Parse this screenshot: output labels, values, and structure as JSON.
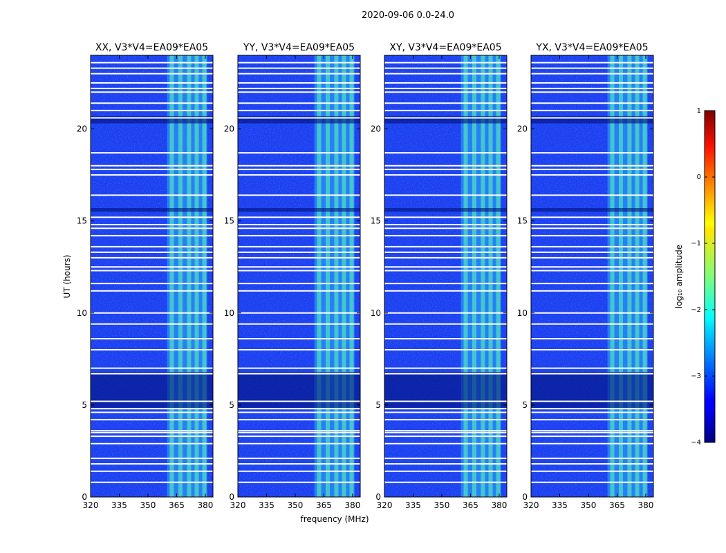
{
  "chart_data": {
    "type": "heatmap",
    "suptitle": "2020-09-06 0.0-24.0",
    "xlabel": "frequency (MHz)",
    "ylabel": "UT (hours)",
    "xlim": [
      320,
      384
    ],
    "ylim": [
      0,
      24
    ],
    "xticks": [
      320,
      335,
      350,
      365,
      380
    ],
    "yticks": [
      0,
      5,
      10,
      15,
      20
    ],
    "panels": [
      {
        "title": "XX, V3*V4=EA09*EA05",
        "pol": "XX"
      },
      {
        "title": "YY, V3*V4=EA09*EA05",
        "pol": "YY"
      },
      {
        "title": "XY, V3*V4=EA09*EA05",
        "pol": "XY"
      },
      {
        "title": "YX, V3*V4=EA09*EA05",
        "pol": "YX"
      }
    ],
    "rfi_band_mhz": [
      360,
      381
    ],
    "rfi_channels_mhz": [
      362.5,
      367.0,
      371.5,
      375.5,
      379.5
    ],
    "flagged_hours": [
      0.8,
      1.4,
      1.8,
      2.1,
      2.9,
      3.3,
      3.5,
      3.6,
      4.2,
      4.6,
      4.8,
      5.2,
      6.7,
      7.0,
      8.0,
      8.6,
      9.4,
      10.0,
      11.2,
      11.6,
      12.3,
      12.5,
      13.0,
      13.3,
      13.6,
      14.2,
      14.6,
      14.8,
      15.2,
      16.4,
      17.5,
      17.8,
      18.0,
      18.7,
      20.6,
      21.0,
      21.4,
      22.0,
      22.2,
      22.5,
      23.0,
      23.3,
      23.6
    ],
    "low_amplitude_hours": [
      [
        4.8,
        6.8
      ],
      [
        15.5,
        15.7
      ],
      [
        20.3,
        20.7
      ]
    ],
    "colorbar": {
      "label": "log₁₀ amplitude",
      "range": [
        -4,
        1
      ],
      "ticks": [
        1,
        0,
        -1,
        -2,
        -3,
        -4
      ],
      "tick_labels": [
        "1",
        "0",
        "−1",
        "−2",
        "−3",
        "−4"
      ],
      "colormap": "jet"
    }
  }
}
